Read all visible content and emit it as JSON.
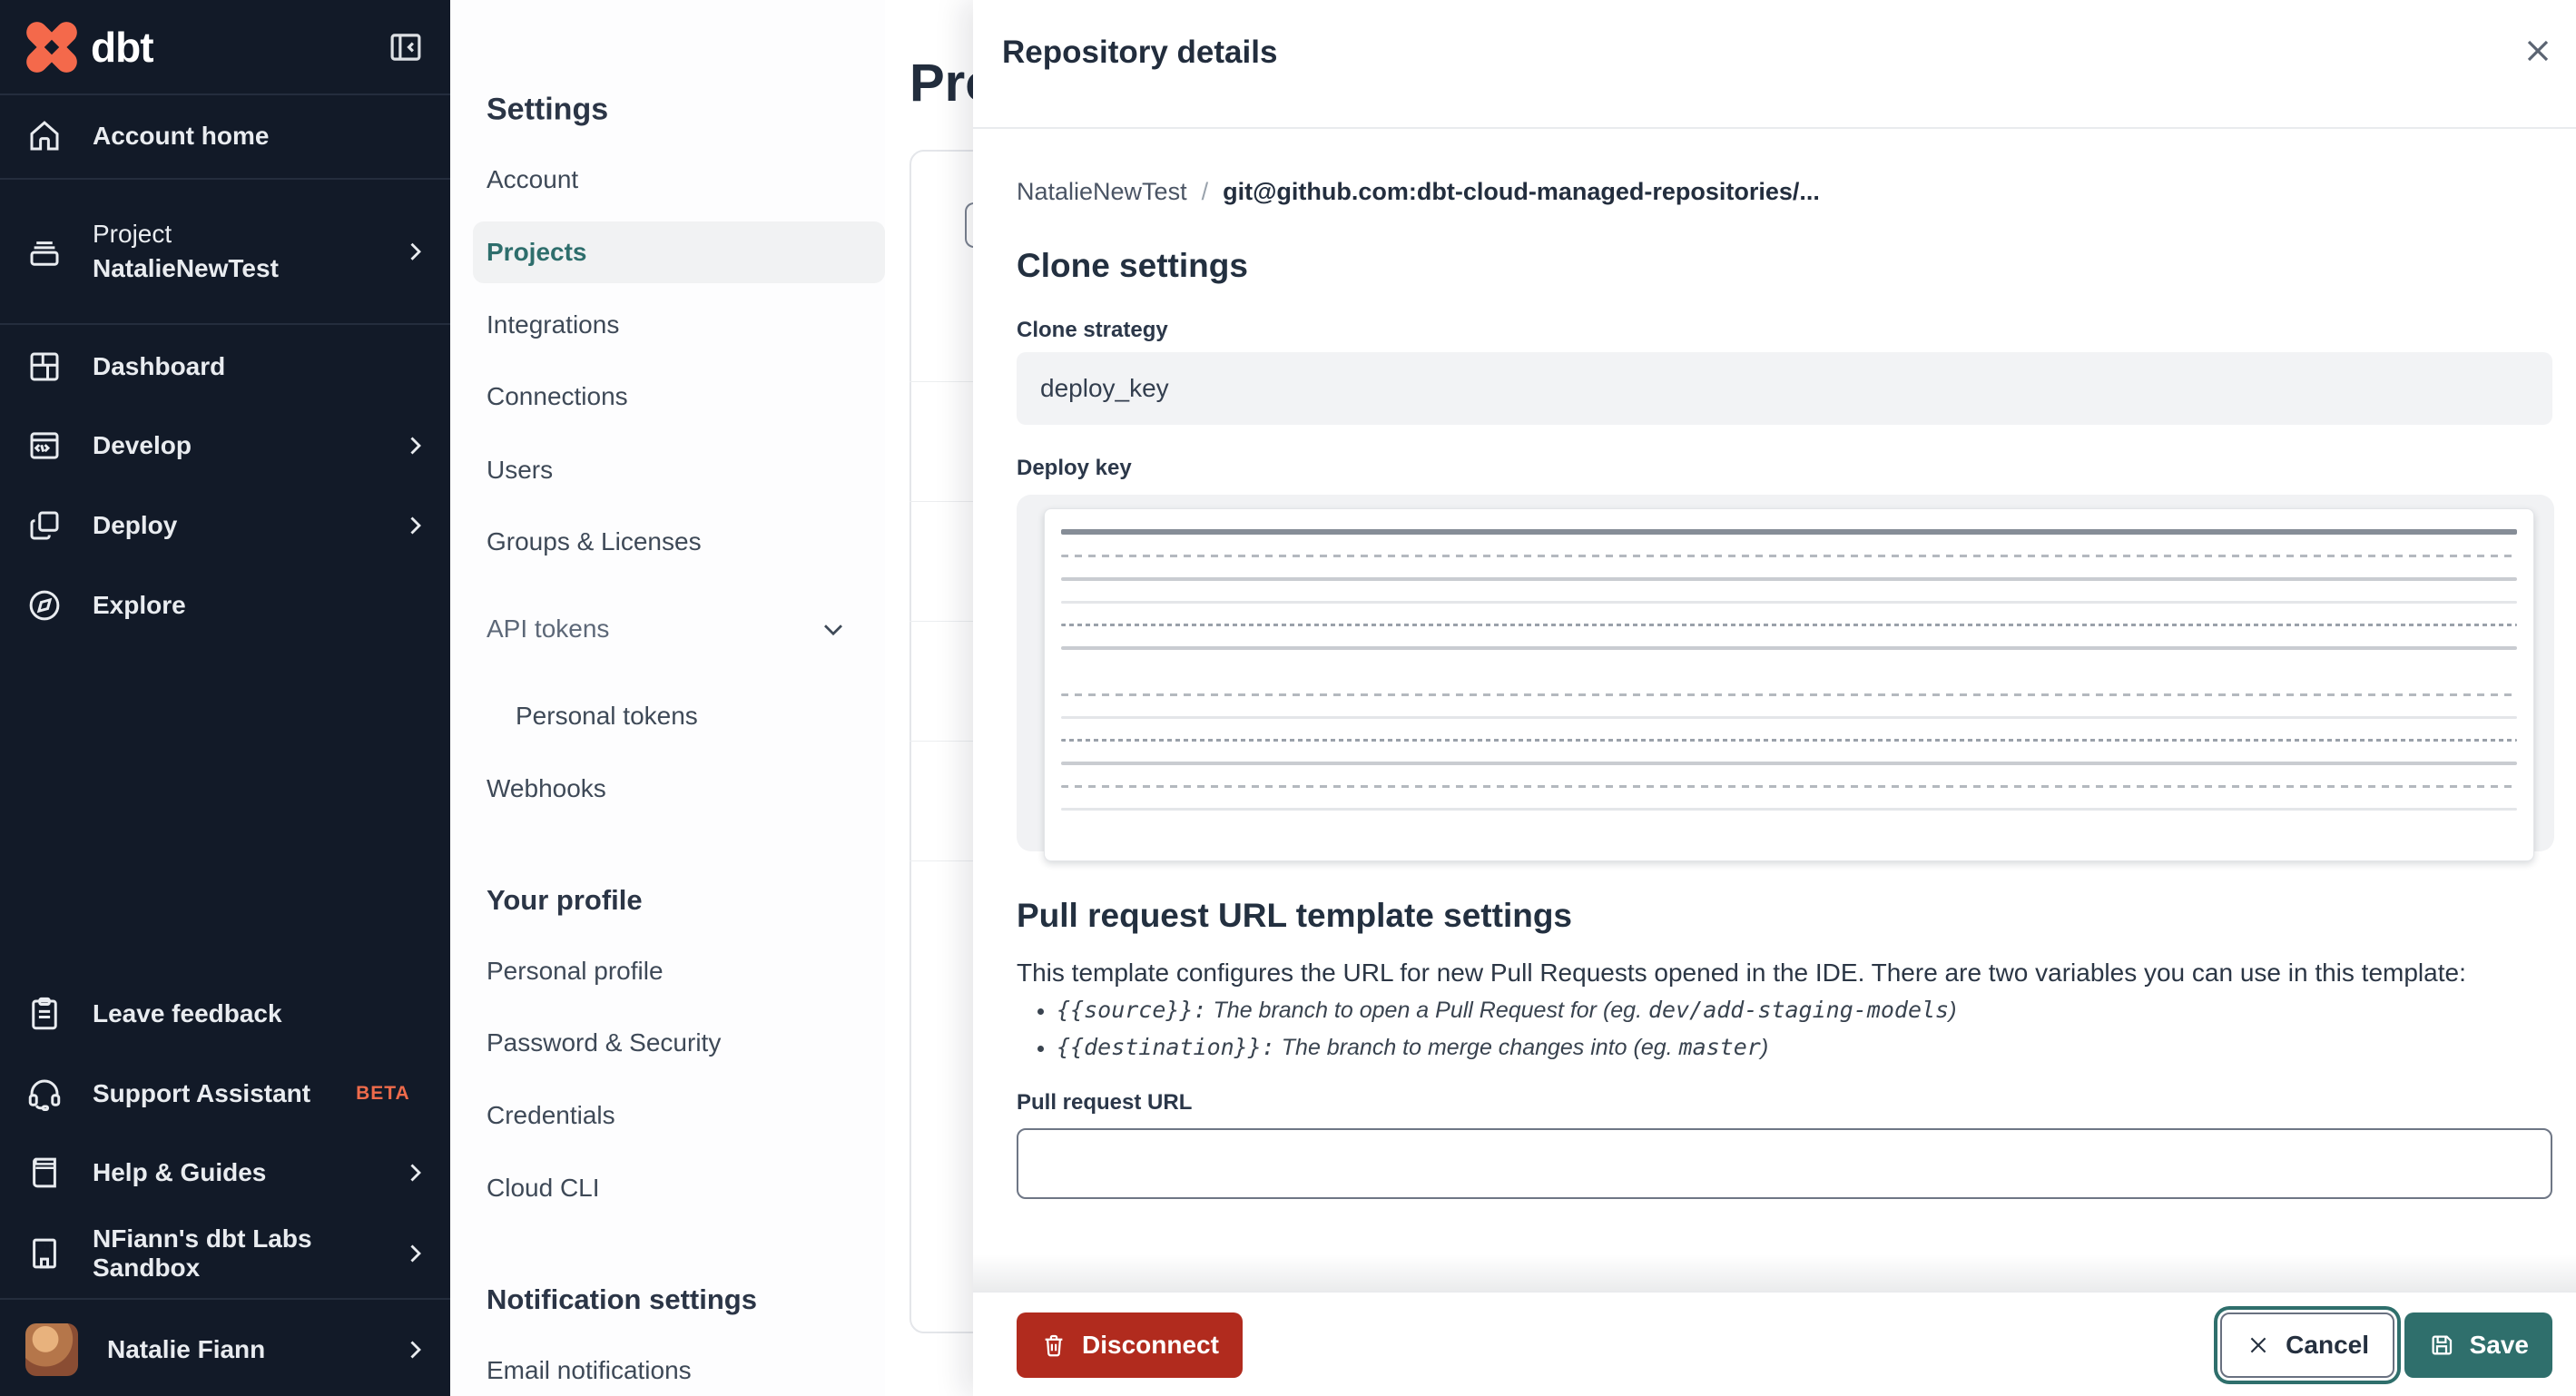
{
  "colors": {
    "sidebar_bg": "#121a28",
    "brand_orange": "#f4694b",
    "accent_teal": "#2f6f6c",
    "danger_red": "#b12b1e",
    "beta_orange": "#ef6b4b",
    "selected_teal_text": "#2e6e6c"
  },
  "sidebar": {
    "logo_text": "dbt",
    "items": [
      {
        "label": "Account home"
      },
      {
        "label_line1": "Project",
        "label_line2": "NatalieNewTest"
      },
      {
        "label": "Dashboard"
      },
      {
        "label": "Develop"
      },
      {
        "label": "Deploy"
      },
      {
        "label": "Explore"
      }
    ],
    "footer_items": [
      {
        "label": "Leave feedback"
      },
      {
        "label": "Support Assistant",
        "badge": "BETA"
      },
      {
        "label": "Help & Guides"
      },
      {
        "label": "NFiann's dbt Labs Sandbox"
      }
    ],
    "user": {
      "name": "Natalie Fiann"
    }
  },
  "settings_nav": {
    "heading": "Settings",
    "items": [
      "Account",
      "Projects",
      "Integrations",
      "Connections",
      "Users",
      "Groups & Licenses",
      "API tokens",
      "Personal tokens",
      "Webhooks"
    ],
    "profile_heading": "Your profile",
    "profile_items": [
      "Personal profile",
      "Password & Security",
      "Credentials",
      "Cloud CLI"
    ],
    "notification_heading": "Notification settings",
    "notification_items": [
      "Email notifications"
    ]
  },
  "background_page": {
    "title_partial": "Pro"
  },
  "panel": {
    "title": "Repository details",
    "breadcrumb": {
      "project": "NatalieNewTest",
      "separator": "/",
      "repo": "git@github.com:dbt-cloud-managed-repositories/..."
    },
    "clone_settings": {
      "heading": "Clone settings",
      "strategy_label": "Clone strategy",
      "strategy_value": "deploy_key",
      "deploy_key_label": "Deploy key",
      "deploy_key_redacted": true
    },
    "pr_template": {
      "heading": "Pull request URL template settings",
      "description": "This template configures the URL for new Pull Requests opened in the IDE. There are two variables you can use in this template:",
      "bullets": [
        {
          "code": "{{source}}:",
          "text": " The branch to open a Pull Request for (eg. ",
          "example": "dev/add-staging-models",
          "close": ")"
        },
        {
          "code": "{{destination}}:",
          "text": " The branch to merge changes into (eg. ",
          "example": "master",
          "close": ")"
        }
      ],
      "url_label": "Pull request URL",
      "url_value": ""
    },
    "footer": {
      "disconnect_label": "Disconnect",
      "cancel_label": "Cancel",
      "save_label": "Save"
    }
  }
}
